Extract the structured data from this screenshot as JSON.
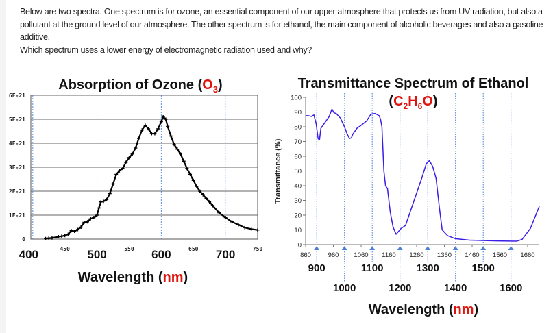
{
  "question": {
    "paragraph": "Below are two spectra. One spectrum is for ozone, an essential component of our upper atmosphere that protects us from UV radiation, but also a pollutant at the ground level of our atmosphere. The other spectrum is for ethanol, the main component of alcoholic beverages and also a gasoline additive.",
    "prompt": "Which spectrum uses a lower energy of electromagnetic radiation used and why?"
  },
  "colors": {
    "accent_red": "#e0140c",
    "ethanol_line": "#3a1ee8",
    "ozone_line": "#000000",
    "guide_blue": "#4a7fd6"
  },
  "chart_data": [
    {
      "type": "line",
      "title": {
        "prefix": "Absorption of Ozone (",
        "formula": "O",
        "subscript": "3",
        "suffix": ")"
      },
      "xlabel": {
        "main": "Wavelength (",
        "unit": "nm",
        "close": ")"
      },
      "ylabel": "",
      "xlim": [
        397,
        750
      ],
      "ylim": [
        0,
        6e-21
      ],
      "grid": "horizontal",
      "y_ticks": [
        "0",
        "1E-21",
        "2E-21",
        "3E-21",
        "4E-21",
        "5E-21",
        "6E-21"
      ],
      "x_ticks_major": [
        "400",
        "500",
        "600",
        "700"
      ],
      "x_ticks_minor": [
        "450",
        "550",
        "650",
        "750"
      ],
      "marker": "plus",
      "x": [
        420,
        425,
        430,
        440,
        445,
        450,
        455,
        460,
        465,
        470,
        475,
        480,
        485,
        490,
        495,
        500,
        503,
        506,
        510,
        515,
        520,
        525,
        530,
        535,
        540,
        545,
        550,
        555,
        560,
        565,
        570,
        575,
        580,
        585,
        590,
        595,
        600,
        603,
        607,
        610,
        615,
        620,
        625,
        630,
        635,
        640,
        645,
        650,
        655,
        660,
        665,
        670,
        675,
        680,
        690,
        700,
        710,
        720,
        730,
        740,
        750
      ],
      "y_e21": [
        0.02,
        0.04,
        0.05,
        0.1,
        0.12,
        0.15,
        0.2,
        0.35,
        0.33,
        0.4,
        0.5,
        0.7,
        0.72,
        0.85,
        0.9,
        1.0,
        1.3,
        1.55,
        1.58,
        1.65,
        1.9,
        2.3,
        2.7,
        2.85,
        2.95,
        3.2,
        3.4,
        3.55,
        3.8,
        4.2,
        4.55,
        4.75,
        4.6,
        4.4,
        4.4,
        4.6,
        4.9,
        5.1,
        5.0,
        4.7,
        4.3,
        3.95,
        3.75,
        3.55,
        3.25,
        2.95,
        2.7,
        2.45,
        2.2,
        2.0,
        1.85,
        1.7,
        1.55,
        1.4,
        1.1,
        0.9,
        0.72,
        0.6,
        0.48,
        0.42,
        0.38
      ]
    },
    {
      "type": "line",
      "title": {
        "line1": "Transmittance Spectrum of Ethanol",
        "open": "(",
        "c": "C",
        "c_sub": "2",
        "h": "H",
        "h_sub": "6",
        "o": "O",
        "close": ")"
      },
      "xlabel": {
        "main": "Wavelength (",
        "unit": "nm",
        "close": ")"
      },
      "ylabel": "Transmittance (%)",
      "xlim": [
        860,
        1702
      ],
      "ylim": [
        0,
        100
      ],
      "y_ticks": [
        "0",
        "10",
        "20",
        "30",
        "40",
        "50",
        "60",
        "70",
        "80",
        "90",
        "100"
      ],
      "x_ticks": [
        "860",
        "960",
        "1060",
        "1160",
        "1260",
        "1360",
        "1460",
        "1560",
        "1660"
      ],
      "x_marks": [
        "900",
        "1000",
        "1100",
        "1200",
        "1300",
        "1400",
        "1500",
        "1600"
      ],
      "x": [
        860,
        870,
        880,
        890,
        898,
        905,
        910,
        915,
        930,
        945,
        955,
        962,
        970,
        985,
        1000,
        1010,
        1018,
        1025,
        1030,
        1045,
        1060,
        1080,
        1095,
        1110,
        1125,
        1130,
        1135,
        1142,
        1148,
        1155,
        1165,
        1175,
        1186,
        1195,
        1204,
        1220,
        1240,
        1260,
        1280,
        1295,
        1306,
        1318,
        1330,
        1342,
        1352,
        1372,
        1400,
        1450,
        1550,
        1620,
        1640,
        1670,
        1702
      ],
      "y": [
        87.5,
        87.5,
        87,
        88,
        82,
        72,
        71,
        79,
        83,
        87,
        92,
        89.5,
        89,
        86,
        80,
        75,
        72,
        72.5,
        75,
        79,
        81,
        84,
        88.5,
        89,
        87.5,
        85,
        80,
        50,
        40,
        38,
        22,
        12,
        7,
        9,
        11,
        13,
        24,
        35,
        46,
        55,
        57,
        53,
        45,
        25,
        10,
        6,
        4,
        3,
        2.5,
        2.3,
        3.5,
        11,
        26
      ]
    }
  ]
}
